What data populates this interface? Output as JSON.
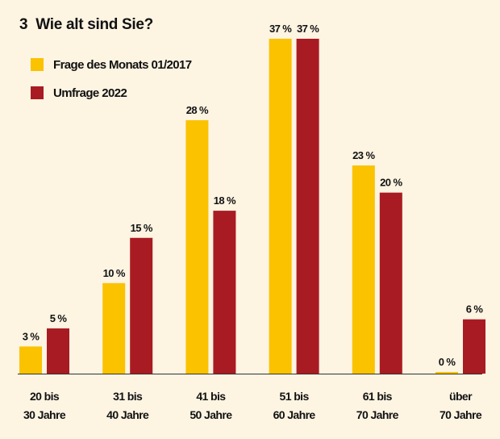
{
  "chart_data": {
    "type": "bar",
    "title_number": "3",
    "title": "Wie alt sind Sie?",
    "xlabel": "",
    "ylabel": "",
    "ylim": [
      0,
      37
    ],
    "grid": false,
    "legend_position": "top-left",
    "categories": [
      [
        "20 bis",
        "30 Jahre"
      ],
      [
        "31 bis",
        "40 Jahre"
      ],
      [
        "41 bis",
        "50 Jahre"
      ],
      [
        "51 bis",
        "60 Jahre"
      ],
      [
        "61 bis",
        "70 Jahre"
      ],
      [
        "über",
        "70 Jahre"
      ]
    ],
    "series": [
      {
        "name": "Frage des Monats 01/2017",
        "color": "#fbc200",
        "values": [
          3,
          10,
          28,
          37,
          23,
          0
        ],
        "labels": [
          "3 %",
          "10 %",
          "28 %",
          "37 %",
          "23 %",
          "0 %"
        ]
      },
      {
        "name": "Umfrage 2022",
        "color": "#a91b22",
        "values": [
          5,
          15,
          18,
          37,
          20,
          6
        ],
        "labels": [
          "5 %",
          "15 %",
          "18 %",
          "37 %",
          "20 %",
          "6 %"
        ]
      }
    ]
  }
}
